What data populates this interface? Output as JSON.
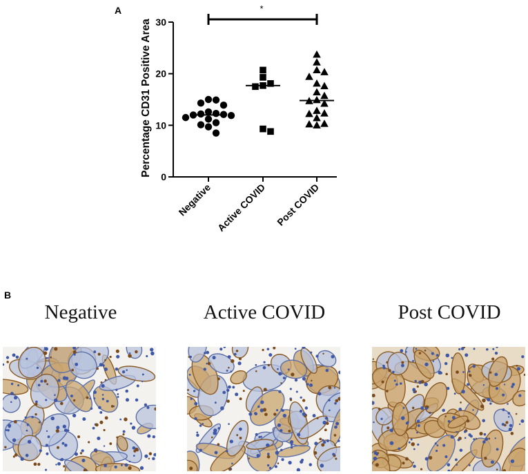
{
  "figure": {
    "panel_a": "A",
    "panel_b": "B",
    "significance_marker": "*",
    "images": [
      {
        "title": "Negative",
        "stain_density": 0.35
      },
      {
        "title": "Active COVID",
        "stain_density": 0.45
      },
      {
        "title": "Post COVID",
        "stain_density": 0.75
      }
    ]
  },
  "chart_data": {
    "type": "scatter",
    "title": "",
    "xlabel": "",
    "ylabel": "Percentage CD31 Positive Area",
    "ylim": [
      0,
      30
    ],
    "yticks": [
      0,
      10,
      20,
      30
    ],
    "categories": [
      "Negative",
      "Active COVID",
      "Post COVID"
    ],
    "series": [
      {
        "category": "Negative",
        "marker": "circle",
        "median": 12.0,
        "values": [
          15.0,
          14.9,
          14.3,
          13.9,
          12.6,
          12.3,
          12.2,
          12.1,
          12.0,
          11.9,
          11.5,
          11.2,
          10.5,
          10.1,
          9.7,
          8.5
        ]
      },
      {
        "category": "Active COVID",
        "marker": "square",
        "median": 17.7,
        "values": [
          20.7,
          19.3,
          18.1,
          17.7,
          17.5,
          9.3,
          8.8
        ]
      },
      {
        "category": "Post COVID",
        "marker": "triangle",
        "median": 14.8,
        "values": [
          23.7,
          22.2,
          20.7,
          20.3,
          19.4,
          18.1,
          17.6,
          16.4,
          15.7,
          14.9,
          14.7,
          14.2,
          12.8,
          12.3,
          12.2,
          11.4,
          10.3,
          10.2,
          10.0
        ]
      }
    ],
    "comparison": {
      "from": "Negative",
      "to": "Post COVID",
      "label": "*"
    },
    "color": "#000000"
  }
}
